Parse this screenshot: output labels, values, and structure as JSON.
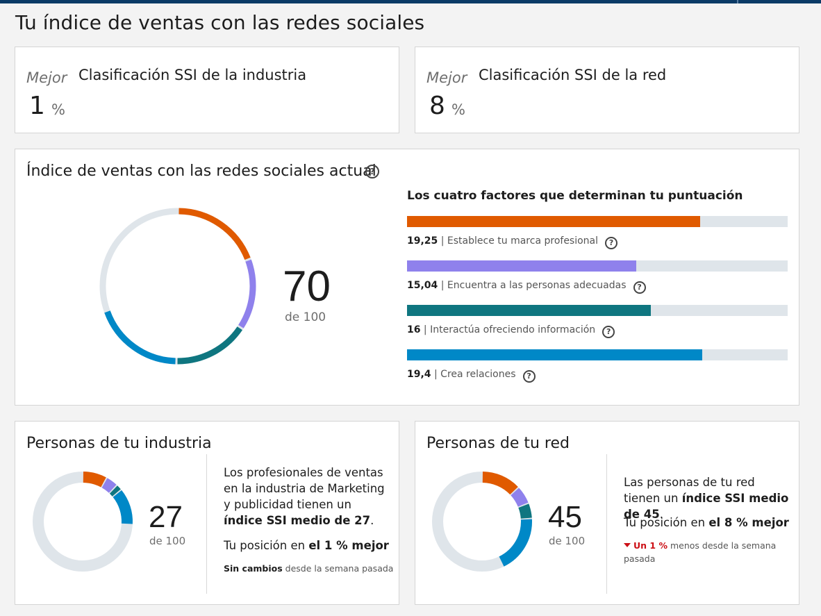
{
  "page_title": "Tu índice de ventas con las redes sociales",
  "ranks": [
    {
      "mejor": "Mejor",
      "title": "Clasificación SSI de la industria",
      "value": "1",
      "unit": "%"
    },
    {
      "mejor": "Mejor",
      "title": "Clasificación SSI de la red",
      "value": "8",
      "unit": "%"
    }
  ],
  "current": {
    "title": "Índice de ventas con las redes sociales actual",
    "help_glyph": "?",
    "score": "70",
    "out_of": "de 100",
    "factors_title": "Los cuatro factores que determinan tu puntuación"
  },
  "chart_data": [
    {
      "type": "bar",
      "categories": [
        "Establece tu marca profesional",
        "Encuentra a las personas adecuadas",
        "Interactúa ofreciendo información",
        "Crea relaciones"
      ],
      "values": [
        19.25,
        15.04,
        16,
        19.4
      ],
      "value_labels": [
        "19,25",
        "15,04",
        "16",
        "19,4"
      ],
      "ylim": [
        0,
        25
      ],
      "colors": [
        "#e05a00",
        "#8f81ec",
        "#0f7680",
        "#0088c7"
      ]
    },
    {
      "type": "pie",
      "categories": [
        "Establece tu marca profesional",
        "Encuentra a las personas adecuadas",
        "Interactúa ofreciendo información",
        "Crea relaciones"
      ],
      "values": [
        19.25,
        15.04,
        16,
        19.4
      ],
      "total": 100,
      "colors": [
        "#e05a00",
        "#8f81ec",
        "#0f7680",
        "#0088c7"
      ]
    }
  ],
  "peers": [
    {
      "title": "Personas de tu industria",
      "score": "27",
      "out_of": "de 100",
      "ring_values": [
        8,
        4,
        2,
        12
      ],
      "desc_1a": "Los profesionales de ventas en la industria de Marketing y publicidad tienen un ",
      "desc_1b": "índice SSI medio de 27",
      "desc_1c": ".",
      "desc_2a": "Tu posición en ",
      "desc_2b": "el 1 % mejor",
      "change_strong": "Sin cambios",
      "change_rest": " desde la semana pasada"
    },
    {
      "title": "Personas de tu red",
      "score": "45",
      "out_of": "de 100",
      "ring_values": [
        13,
        6,
        5,
        19
      ],
      "desc_1a": "Las personas de tu red tienen un ",
      "desc_1b": "índice SSI medio de 45",
      "desc_1c": ".",
      "desc_2a": "Tu posición en ",
      "desc_2b": "el 8 % mejor",
      "change_strong": "Un 1 %",
      "change_rest": " menos desde la semana pasada"
    }
  ],
  "colors": {
    "ring_track": "#dfe5ea",
    "accent_orange": "#e05a00",
    "accent_purple": "#8f81ec",
    "accent_teal": "#0f7680",
    "accent_blue": "#0088c7",
    "down_red": "#cc1016"
  }
}
